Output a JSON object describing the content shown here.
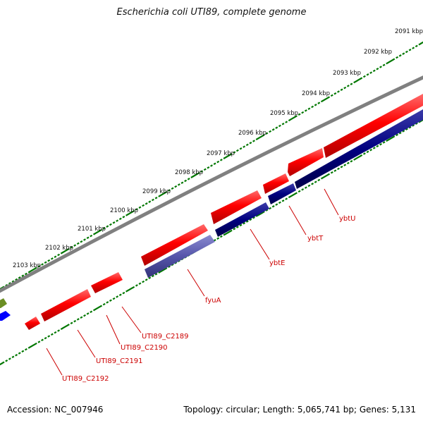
{
  "map": {
    "title": "Escherichia coli UTI89, complete genome",
    "accession": "Accession: NC_007946",
    "summary": "Topology: circular; Length: 5,065,741 bp; Genes: 5,131"
  },
  "scale_ticks": [
    {
      "label": "2091 kbp"
    },
    {
      "label": "2092 kbp"
    },
    {
      "label": "2093 kbp"
    },
    {
      "label": "2094 kbp"
    },
    {
      "label": "2095 kbp"
    },
    {
      "label": "2096 kbp"
    },
    {
      "label": "2097 kbp"
    },
    {
      "label": "2098 kbp"
    },
    {
      "label": "2099 kbp"
    },
    {
      "label": "2100 kbp"
    },
    {
      "label": "2101 kbp"
    },
    {
      "label": "2102 kbp"
    },
    {
      "label": "2103 kbp"
    }
  ],
  "genes": [
    {
      "name": "ybtU"
    },
    {
      "name": "ybtT"
    },
    {
      "name": "ybtE"
    },
    {
      "name": "fyuA"
    },
    {
      "name": "UTI89_C2189"
    },
    {
      "name": "UTI89_C2190"
    },
    {
      "name": "UTI89_C2191"
    },
    {
      "name": "UTI89_C2192"
    }
  ],
  "colors": {
    "backbone": "#808080",
    "forward_gene": "#ff0000",
    "reverse_gene": "#000080",
    "fyuA_gene": "#5555aa",
    "tick": "#007700",
    "label_line": "#cc0000",
    "offscreen_green": "#6b8e23",
    "offscreen_blue": "#0000ff"
  }
}
